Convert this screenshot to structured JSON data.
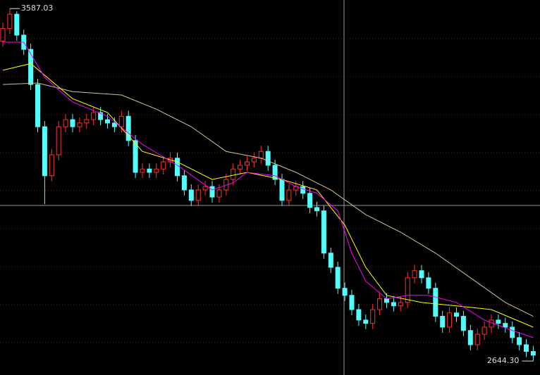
{
  "chart_data": {
    "type": "candlestick",
    "up_color": "#ff3232",
    "down_color": "#54fcfc",
    "ylim": [
      2607,
      3610
    ],
    "open": [
      3500,
      3534,
      3572,
      3516,
      3478,
      3384,
      3271,
      3140,
      3196,
      3271,
      3290,
      3271,
      3281,
      3290,
      3309,
      3290,
      3281,
      3271,
      3299,
      3234,
      3149,
      3158,
      3149,
      3158,
      3177,
      3187,
      3140,
      3102,
      3074,
      3102,
      3111,
      3083,
      3102,
      3130,
      3158,
      3168,
      3177,
      3187,
      3205,
      3168,
      3130,
      3074,
      3102,
      3111,
      3093,
      3055,
      3046,
      2933,
      2895,
      2839,
      2820,
      2782,
      2754,
      2745,
      2782,
      2811,
      2801,
      2792,
      2801,
      2867,
      2886,
      2867,
      2839,
      2764,
      2735,
      2773,
      2764,
      2726,
      2688,
      2716,
      2735,
      2754,
      2745,
      2735,
      2707,
      2688,
      2670
    ],
    "high": [
      3549,
      3587.03,
      3580,
      3531,
      3493,
      3399,
      3286,
      3211,
      3286,
      3305,
      3305,
      3296,
      3305,
      3324,
      3324,
      3305,
      3296,
      3314,
      3314,
      3249,
      3173,
      3173,
      3173,
      3192,
      3202,
      3202,
      3155,
      3117,
      3117,
      3126,
      3126,
      3117,
      3145,
      3173,
      3183,
      3192,
      3202,
      3220,
      3220,
      3183,
      3145,
      3117,
      3126,
      3126,
      3108,
      3070,
      3061,
      2948,
      2910,
      2854,
      2835,
      2797,
      2769,
      2797,
      2826,
      2826,
      2816,
      2816,
      2882,
      2901,
      2901,
      2882,
      2854,
      2779,
      2788,
      2788,
      2779,
      2741,
      2731,
      2750,
      2769,
      2769,
      2760,
      2750,
      2722,
      2703,
      2685
    ],
    "low": [
      3485,
      3519,
      3501,
      3463,
      3369,
      3256,
      3064,
      3125,
      3181,
      3256,
      3256,
      3256,
      3266,
      3275,
      3275,
      3266,
      3256,
      3256,
      3219,
      3134,
      3134,
      3134,
      3134,
      3143,
      3162,
      3125,
      3087,
      3059,
      3059,
      3087,
      3068,
      3068,
      3087,
      3115,
      3143,
      3153,
      3162,
      3172,
      3153,
      3115,
      3059,
      3059,
      3087,
      3078,
      3040,
      3031,
      2918,
      2880,
      2824,
      2805,
      2767,
      2739,
      2730,
      2730,
      2767,
      2786,
      2777,
      2777,
      2786,
      2852,
      2852,
      2824,
      2749,
      2720,
      2720,
      2749,
      2711,
      2673,
      2673,
      2701,
      2720,
      2730,
      2720,
      2692,
      2673,
      2655,
      2644.3
    ],
    "close": [
      3534,
      3572,
      3516,
      3478,
      3384,
      3271,
      3140,
      3196,
      3271,
      3290,
      3271,
      3281,
      3290,
      3309,
      3290,
      3281,
      3271,
      3299,
      3234,
      3149,
      3158,
      3149,
      3158,
      3177,
      3187,
      3140,
      3102,
      3074,
      3102,
      3111,
      3083,
      3102,
      3130,
      3158,
      3168,
      3177,
      3187,
      3205,
      3168,
      3130,
      3074,
      3102,
      3111,
      3093,
      3055,
      3046,
      2933,
      2895,
      2839,
      2820,
      2782,
      2754,
      2745,
      2782,
      2811,
      2801,
      2792,
      2801,
      2867,
      2886,
      2867,
      2839,
      2764,
      2735,
      2773,
      2764,
      2726,
      2688,
      2716,
      2735,
      2754,
      2745,
      2735,
      2707,
      2688,
      2670,
      2660
    ],
    "lines": [
      {
        "color": "#c8c896",
        "x": [
          0,
          5,
          10,
          17,
          22,
          27,
          32,
          37,
          42,
          47,
          52,
          57,
          62,
          67,
          72,
          76
        ],
        "values": [
          3384,
          3388,
          3365,
          3356,
          3318,
          3271,
          3205,
          3187,
          3149,
          3102,
          3036,
          2989,
          2933,
          2867,
          2801,
          2764
        ]
      },
      {
        "color": "#ffff00",
        "x": [
          0,
          4,
          10,
          15,
          20,
          25,
          30,
          35,
          40,
          45,
          49,
          52,
          55,
          60,
          65,
          70,
          76
        ],
        "values": [
          3422,
          3440,
          3346,
          3309,
          3205,
          3177,
          3130,
          3149,
          3130,
          3102,
          3008,
          2895,
          2820,
          2801,
          2792,
          2782,
          2735
        ]
      },
      {
        "color": "#ff00ff",
        "x": [
          0,
          3,
          6,
          10,
          15,
          20,
          25,
          30,
          33,
          35,
          39,
          42,
          45,
          48,
          50,
          52,
          55,
          58,
          61,
          65,
          69,
          73,
          76
        ],
        "values": [
          3497,
          3497,
          3403,
          3337,
          3299,
          3224,
          3168,
          3102,
          3121,
          3149,
          3140,
          3111,
          3093,
          3046,
          2933,
          2858,
          2811,
          2820,
          2820,
          2801,
          2754,
          2726,
          2707
        ]
      }
    ],
    "annotations": [
      {
        "index": 1,
        "value": 3587.03,
        "label": "3587.03"
      },
      {
        "index": 76,
        "value": 2644.3,
        "label": "2644.30"
      }
    ]
  }
}
